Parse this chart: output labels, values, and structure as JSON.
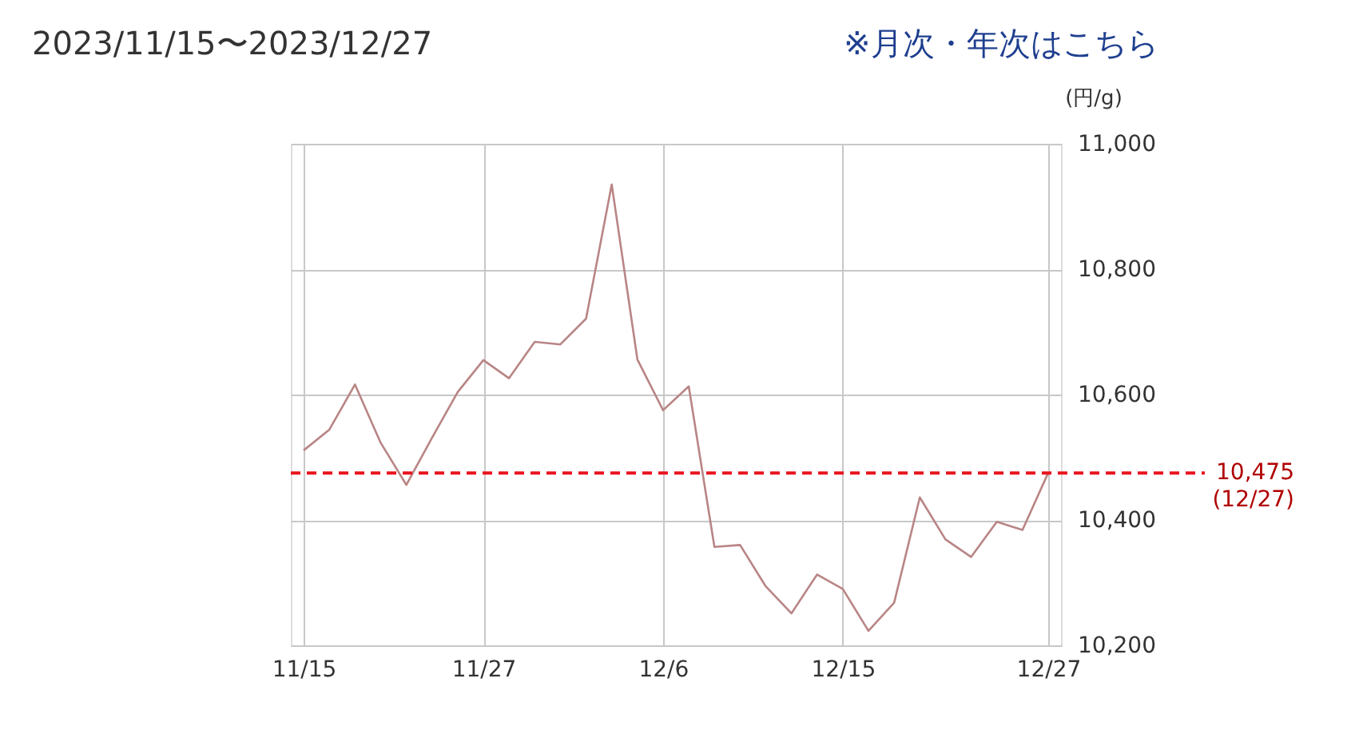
{
  "chart_data": {
    "type": "line",
    "title": "2023/11/15〜2023/12/27",
    "annotations": [
      "※月次・年次はこちら"
    ],
    "ylabel": "(円/g)",
    "categories": [
      "11/15",
      null,
      null,
      null,
      null,
      null,
      null,
      "11/27",
      null,
      null,
      null,
      null,
      null,
      null,
      "12/6",
      null,
      null,
      null,
      null,
      null,
      null,
      "12/15",
      null,
      null,
      null,
      null,
      null,
      null,
      null,
      "12/27"
    ],
    "series": [
      {
        "color": "#b98585",
        "values": [
          10511,
          10544,
          10616,
          10523,
          10456,
          10531,
          10604,
          10655,
          10626,
          10684,
          10680,
          10721,
          10935,
          10656,
          10575,
          10613,
          10357,
          10360,
          10294,
          10251,
          10313,
          10290,
          10223,
          10268,
          10436,
          10369,
          10341,
          10397,
          10384,
          10475
        ]
      }
    ],
    "ylim": [
      10200,
      11000
    ],
    "yticks": [
      {
        "value": 10200,
        "label": "10,200"
      },
      {
        "value": 10400,
        "label": "10,400"
      },
      {
        "value": 10600,
        "label": "10,600"
      },
      {
        "value": 10800,
        "label": "10,800"
      },
      {
        "value": 11000,
        "label": "11,000"
      }
    ],
    "ref_lines": [
      {
        "axis": "y",
        "value": 10475,
        "label": "10,475\n(12/27)",
        "color": "#e8141e",
        "line_style": "dashed"
      }
    ],
    "grid": true,
    "legend": false,
    "line_style": "solid",
    "marker": "none"
  }
}
